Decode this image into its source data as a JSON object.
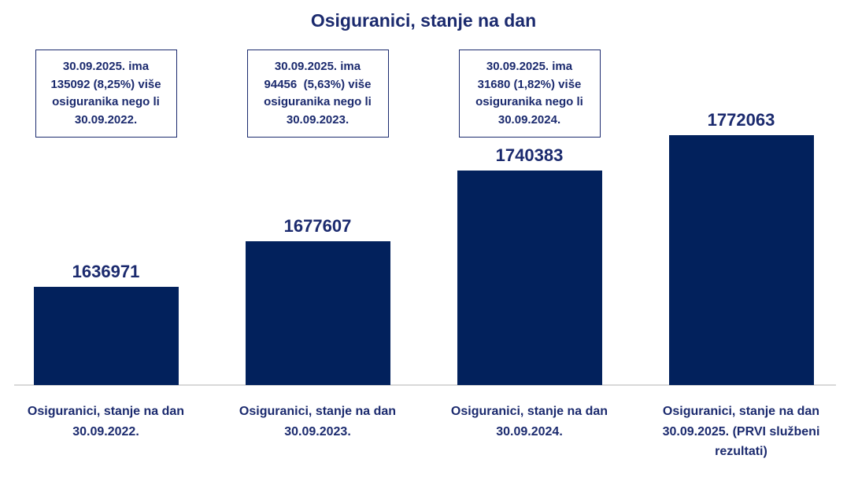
{
  "colors": {
    "bar_fill": "#02215C",
    "text_navy": "#1B2A6E",
    "axis_line": "#D9D9D9",
    "background": "#FFFFFF",
    "annotation_border": "#1B2A6E"
  },
  "chart_data": {
    "type": "bar",
    "title": "Osiguranici, stanje na dan",
    "categories": [
      "Osiguranici, stanje na dan 30.09.2022.",
      "Osiguranici, stanje na dan 30.09.2023.",
      "Osiguranici, stanje na dan 30.09.2024.",
      "Osiguranici, stanje na dan 30.09.2025. (PRVI službeni rezultati)"
    ],
    "category_lines": [
      [
        "Osiguranici, stanje na dan",
        "30.09.2022."
      ],
      [
        "Osiguranici, stanje na dan",
        "30.09.2023."
      ],
      [
        "Osiguranici, stanje na dan",
        "30.09.2024."
      ],
      [
        "Osiguranici, stanje na dan",
        "30.09.2025. (PRVI službeni",
        "rezultati)"
      ]
    ],
    "values": [
      1636971,
      1677607,
      1740383,
      1772063
    ],
    "data_labels": [
      "1636971",
      "1677607",
      "1740383",
      "1772063"
    ],
    "ylim": [
      1550000,
      1790000
    ],
    "xlabel": "",
    "ylabel": "",
    "grid": false,
    "legend": false,
    "y_axis_visible": false,
    "bar_color": "#02215C",
    "annotations": [
      {
        "over_bar": 0,
        "text": "30.09.2025. ima 135092 (8,25%) više osiguranika nego li 30.09.2022.",
        "lines": [
          "30.09.2025. ima",
          "135092 (8,25%) više",
          "osiguranika nego li",
          "30.09.2022."
        ]
      },
      {
        "over_bar": 1,
        "text": "30.09.2025. ima 94456  (5,63%) više osiguranika nego li 30.09.2023.",
        "lines": [
          "30.09.2025. ima",
          "94456  (5,63%) više",
          "osiguranika nego li",
          "30.09.2023."
        ]
      },
      {
        "over_bar": 2,
        "text": "30.09.2025. ima 31680 (1,82%) više osiguranika nego li 30.09.2024.",
        "lines": [
          "30.09.2025. ima",
          "31680 (1,82%) više",
          "osiguranika nego li",
          "30.09.2024."
        ]
      }
    ]
  }
}
